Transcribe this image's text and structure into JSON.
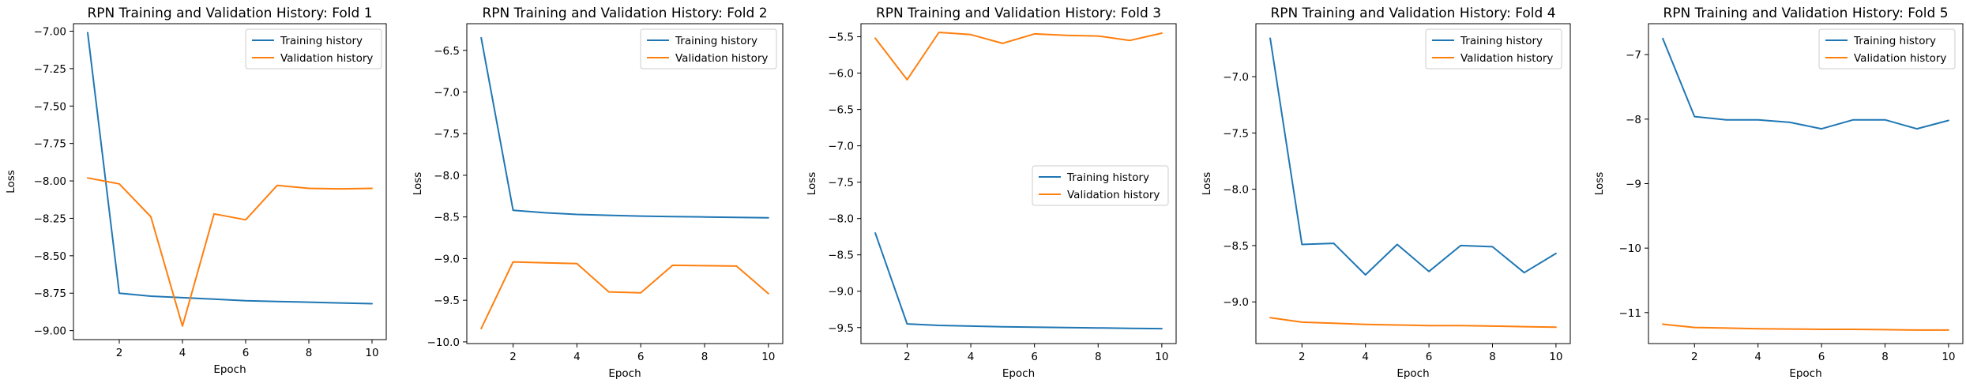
{
  "chart_data": [
    {
      "type": "line",
      "title": "RPN Training and Validation History: Fold 1",
      "xlabel": "Epoch",
      "ylabel": "Loss",
      "x": [
        1,
        2,
        3,
        4,
        5,
        6,
        7,
        8,
        9,
        10
      ],
      "xlim": [
        0.55,
        10.45
      ],
      "ylim": [
        -9.06,
        -6.95
      ],
      "xticks": [
        2,
        4,
        6,
        8,
        10
      ],
      "yticks": [
        -7.0,
        -7.25,
        -7.5,
        -7.75,
        -8.0,
        -8.25,
        -8.5,
        -8.75,
        -9.0
      ],
      "ytick_labels": [
        "−7.00",
        "−7.25",
        "−7.50",
        "−7.75",
        "−8.00",
        "−8.25",
        "−8.50",
        "−8.75",
        "−9.00"
      ],
      "legend_position": "upper right",
      "series": [
        {
          "name": "Training history",
          "color": "#1f77b4",
          "values": [
            -7.01,
            -8.75,
            -8.77,
            -8.78,
            -8.79,
            -8.8,
            -8.805,
            -8.81,
            -8.815,
            -8.82
          ]
        },
        {
          "name": "Validation history",
          "color": "#ff7f0e",
          "values": [
            -7.98,
            -8.02,
            -8.24,
            -8.97,
            -8.22,
            -8.26,
            -8.03,
            -8.05,
            -8.053,
            -8.05
          ]
        }
      ]
    },
    {
      "type": "line",
      "title": "RPN Training and Validation History: Fold 2",
      "xlabel": "Epoch",
      "ylabel": "Loss",
      "x": [
        1,
        2,
        3,
        4,
        5,
        6,
        7,
        8,
        9,
        10
      ],
      "xlim": [
        0.55,
        10.45
      ],
      "ylim": [
        -10.02,
        -6.18
      ],
      "xticks": [
        2,
        4,
        6,
        8,
        10
      ],
      "yticks": [
        -6.5,
        -7.0,
        -7.5,
        -8.0,
        -8.5,
        -9.0,
        -9.5,
        -10.0
      ],
      "ytick_labels": [
        "−6.5",
        "−7.0",
        "−7.5",
        "−8.0",
        "−8.5",
        "−9.0",
        "−9.5",
        "−10.0"
      ],
      "legend_position": "upper right",
      "series": [
        {
          "name": "Training history",
          "color": "#1f77b4",
          "values": [
            -6.35,
            -8.42,
            -8.45,
            -8.47,
            -8.48,
            -8.49,
            -8.495,
            -8.5,
            -8.505,
            -8.51
          ]
        },
        {
          "name": "Validation history",
          "color": "#ff7f0e",
          "values": [
            -9.84,
            -9.04,
            -9.05,
            -9.06,
            -9.4,
            -9.41,
            -9.08,
            -9.085,
            -9.09,
            -9.42
          ]
        }
      ]
    },
    {
      "type": "line",
      "title": "RPN Training and Validation History: Fold 3",
      "xlabel": "Epoch",
      "ylabel": "Loss",
      "x": [
        1,
        2,
        3,
        4,
        5,
        6,
        7,
        8,
        9,
        10
      ],
      "xlim": [
        0.55,
        10.45
      ],
      "ylim": [
        -9.72,
        -5.32
      ],
      "xticks": [
        2,
        4,
        6,
        8,
        10
      ],
      "yticks": [
        -5.5,
        -6.0,
        -6.5,
        -7.0,
        -7.5,
        -8.0,
        -8.5,
        -9.0,
        -9.5
      ],
      "ytick_labels": [
        "−5.5",
        "−6.0",
        "−6.5",
        "−7.0",
        "−7.5",
        "−8.0",
        "−8.5",
        "−9.0",
        "−9.5"
      ],
      "legend_position": "center right",
      "series": [
        {
          "name": "Training history",
          "color": "#1f77b4",
          "values": [
            -8.2,
            -9.45,
            -9.47,
            -9.48,
            -9.49,
            -9.495,
            -9.5,
            -9.505,
            -9.51,
            -9.515
          ]
        },
        {
          "name": "Validation history",
          "color": "#ff7f0e",
          "values": [
            -5.52,
            -6.09,
            -5.44,
            -5.47,
            -5.59,
            -5.46,
            -5.48,
            -5.49,
            -5.55,
            -5.45
          ]
        }
      ]
    },
    {
      "type": "line",
      "title": "RPN Training and Validation History: Fold 4",
      "xlabel": "Epoch",
      "ylabel": "Loss",
      "x": [
        1,
        2,
        3,
        4,
        5,
        6,
        7,
        8,
        9,
        10
      ],
      "xlim": [
        0.55,
        10.45
      ],
      "ylim": [
        -9.37,
        -6.53
      ],
      "xticks": [
        2,
        4,
        6,
        8,
        10
      ],
      "yticks": [
        -7.0,
        -7.5,
        -8.0,
        -8.5,
        -9.0
      ],
      "ytick_labels": [
        "−7.0",
        "−7.5",
        "−8.0",
        "−8.5",
        "−9.0"
      ],
      "legend_position": "upper right",
      "series": [
        {
          "name": "Training history",
          "color": "#1f77b4",
          "values": [
            -6.66,
            -8.49,
            -8.48,
            -8.76,
            -8.49,
            -8.73,
            -8.5,
            -8.51,
            -8.74,
            -8.57
          ]
        },
        {
          "name": "Validation history",
          "color": "#ff7f0e",
          "values": [
            -9.14,
            -9.18,
            -9.19,
            -9.2,
            -9.205,
            -9.21,
            -9.21,
            -9.215,
            -9.22,
            -9.225
          ]
        }
      ]
    },
    {
      "type": "line",
      "title": "RPN Training and Validation History: Fold 5",
      "xlabel": "Epoch",
      "ylabel": "Loss",
      "x": [
        1,
        2,
        3,
        4,
        5,
        6,
        7,
        8,
        9,
        10
      ],
      "xlim": [
        0.55,
        10.45
      ],
      "ylim": [
        -11.48,
        -6.52
      ],
      "xticks": [
        2,
        4,
        6,
        8,
        10
      ],
      "yticks": [
        -7,
        -8,
        -9,
        -10,
        -11
      ],
      "ytick_labels": [
        "−7",
        "−8",
        "−9",
        "−10",
        "−11"
      ],
      "legend_position": "upper right",
      "series": [
        {
          "name": "Training history",
          "color": "#1f77b4",
          "values": [
            -6.75,
            -7.96,
            -8.01,
            -8.01,
            -8.05,
            -8.15,
            -8.01,
            -8.01,
            -8.15,
            -8.02
          ]
        },
        {
          "name": "Validation history",
          "color": "#ff7f0e",
          "values": [
            -11.18,
            -11.23,
            -11.24,
            -11.25,
            -11.255,
            -11.26,
            -11.26,
            -11.265,
            -11.27,
            -11.27
          ]
        }
      ]
    }
  ]
}
